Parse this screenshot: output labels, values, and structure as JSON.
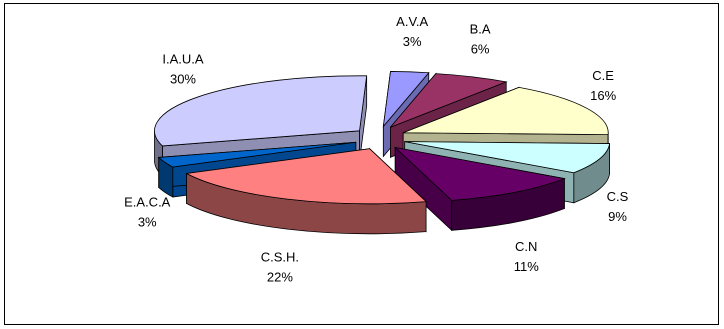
{
  "chart_data": {
    "type": "pie",
    "style": "3d-exploded",
    "title": "",
    "legend": "none",
    "slices": [
      {
        "label": "A.V.A",
        "value": 3,
        "percent_label": "3%",
        "color": "#9999ff"
      },
      {
        "label": "B.A",
        "value": 6,
        "percent_label": "6%",
        "color": "#993366"
      },
      {
        "label": "C.E",
        "value": 16,
        "percent_label": "16%",
        "color": "#ffffcc"
      },
      {
        "label": "C.S",
        "value": 9,
        "percent_label": "9%",
        "color": "#ccffff"
      },
      {
        "label": "C.N",
        "value": 11,
        "percent_label": "11%",
        "color": "#660066"
      },
      {
        "label": "C.S.H.",
        "value": 22,
        "percent_label": "22%",
        "color": "#ff8080"
      },
      {
        "label": "E.A.C.A",
        "value": 3,
        "percent_label": "3%",
        "color": "#0066cc"
      },
      {
        "label": "I.A.U.A",
        "value": 30,
        "percent_label": "30%",
        "color": "#ccccff"
      }
    ]
  }
}
